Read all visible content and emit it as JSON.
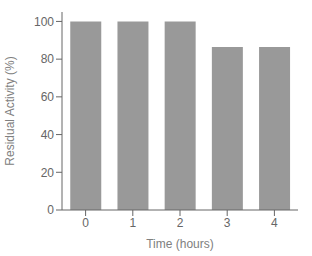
{
  "chart_data": {
    "type": "bar",
    "categories": [
      0,
      1,
      2,
      3,
      4
    ],
    "values": [
      100,
      100,
      100,
      86.5,
      86.5
    ],
    "color": "#999999",
    "xlabel": "Time (hours)",
    "ylabel": "Residual Activity (%)",
    "ylim": [
      0,
      105
    ],
    "yticks": [
      0,
      20,
      40,
      60,
      80,
      100
    ],
    "grid": false
  }
}
